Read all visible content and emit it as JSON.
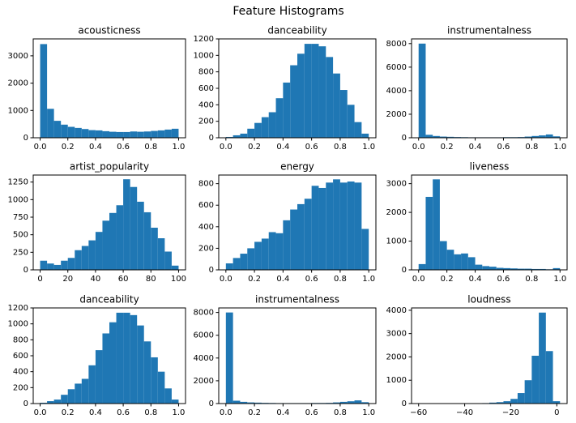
{
  "title": "Feature Histograms",
  "chart_data": [
    {
      "type": "histogram",
      "title": "acousticness",
      "color": "#1f77b4",
      "bins": [
        0,
        0.05,
        0.1,
        0.15,
        0.2,
        0.25,
        0.3,
        0.35,
        0.4,
        0.45,
        0.5,
        0.55,
        0.6,
        0.65,
        0.7,
        0.75,
        0.8,
        0.85,
        0.9,
        0.95,
        1
      ],
      "values": [
        3430,
        1060,
        620,
        480,
        400,
        360,
        320,
        280,
        270,
        240,
        220,
        210,
        210,
        230,
        220,
        230,
        250,
        270,
        300,
        330
      ],
      "xlim": [
        -0.05,
        1.05
      ],
      "xticks": [
        {
          "value": 0,
          "label": "0.0"
        },
        0.2,
        0.4,
        0.6,
        0.8,
        {
          "value": 1,
          "label": "1.0"
        }
      ],
      "ylim": [
        0,
        3620
      ],
      "yticks": [
        0,
        1000,
        2000,
        3000
      ]
    },
    {
      "type": "histogram",
      "title": "danceability",
      "color": "#1f77b4",
      "bins": [
        0,
        0.05,
        0.1,
        0.15,
        0.2,
        0.25,
        0.3,
        0.35,
        0.4,
        0.45,
        0.5,
        0.55,
        0.6,
        0.65,
        0.7,
        0.75,
        0.8,
        0.85,
        0.9,
        0.95,
        1
      ],
      "values": [
        10,
        30,
        50,
        110,
        180,
        250,
        310,
        480,
        670,
        880,
        1020,
        1140,
        1140,
        1110,
        980,
        780,
        580,
        400,
        190,
        50
      ],
      "xlim": [
        -0.05,
        1.05
      ],
      "xticks": [
        {
          "value": 0,
          "label": "0.0"
        },
        0.2,
        0.4,
        0.6,
        0.8,
        {
          "value": 1,
          "label": "1.0"
        }
      ],
      "ylim": [
        0,
        1200
      ],
      "yticks": [
        0,
        200,
        400,
        600,
        800,
        1000,
        1200
      ]
    },
    {
      "type": "histogram",
      "title": "instrumentalness",
      "color": "#1f77b4",
      "bins": [
        0,
        0.05,
        0.1,
        0.15,
        0.2,
        0.25,
        0.3,
        0.35,
        0.4,
        0.45,
        0.5,
        0.55,
        0.6,
        0.65,
        0.7,
        0.75,
        0.8,
        0.85,
        0.9,
        0.95,
        1
      ],
      "values": [
        8000,
        250,
        150,
        100,
        80,
        60,
        50,
        40,
        40,
        40,
        40,
        40,
        50,
        50,
        60,
        100,
        150,
        200,
        280,
        120
      ],
      "xlim": [
        -0.05,
        1.05
      ],
      "xticks": [
        {
          "value": 0,
          "label": "0.0"
        },
        0.2,
        0.4,
        0.6,
        0.8,
        {
          "value": 1,
          "label": "1.0"
        }
      ],
      "ylim": [
        0,
        8400
      ],
      "yticks": [
        0,
        2000,
        4000,
        6000,
        8000
      ]
    },
    {
      "type": "histogram",
      "title": "artist_popularity",
      "color": "#1f77b4",
      "bins": [
        0,
        5,
        10,
        15,
        20,
        25,
        30,
        35,
        40,
        45,
        50,
        55,
        60,
        65,
        70,
        75,
        80,
        85,
        90,
        95,
        100
      ],
      "values": [
        130,
        90,
        70,
        130,
        170,
        280,
        340,
        420,
        540,
        700,
        810,
        920,
        1290,
        1180,
        970,
        820,
        600,
        450,
        260,
        60
      ],
      "xlim": [
        -5,
        105
      ],
      "xticks": [
        0,
        20,
        40,
        60,
        80,
        100
      ],
      "ylim": [
        0,
        1350
      ],
      "yticks": [
        0,
        250,
        500,
        750,
        1000,
        1250
      ]
    },
    {
      "type": "histogram",
      "title": "energy",
      "color": "#1f77b4",
      "bins": [
        0,
        0.05,
        0.1,
        0.15,
        0.2,
        0.25,
        0.3,
        0.35,
        0.4,
        0.45,
        0.5,
        0.55,
        0.6,
        0.65,
        0.7,
        0.75,
        0.8,
        0.85,
        0.9,
        0.95,
        1
      ],
      "values": [
        60,
        110,
        150,
        200,
        260,
        290,
        350,
        340,
        460,
        560,
        610,
        660,
        780,
        760,
        810,
        840,
        810,
        820,
        810,
        380
      ],
      "xlim": [
        -0.05,
        1.05
      ],
      "xticks": [
        {
          "value": 0,
          "label": "0.0"
        },
        0.2,
        0.4,
        0.6,
        0.8,
        {
          "value": 1,
          "label": "1.0"
        }
      ],
      "ylim": [
        0,
        880
      ],
      "yticks": [
        0,
        200,
        400,
        600,
        800
      ]
    },
    {
      "type": "histogram",
      "title": "liveness",
      "color": "#1f77b4",
      "bins": [
        0,
        0.05,
        0.1,
        0.15,
        0.2,
        0.25,
        0.3,
        0.35,
        0.4,
        0.45,
        0.5,
        0.55,
        0.6,
        0.65,
        0.7,
        0.75,
        0.8,
        0.85,
        0.9,
        0.95,
        1
      ],
      "values": [
        200,
        2540,
        3150,
        1000,
        700,
        540,
        570,
        440,
        180,
        130,
        110,
        70,
        60,
        50,
        40,
        40,
        30,
        30,
        20,
        60
      ],
      "xlim": [
        -0.05,
        1.05
      ],
      "xticks": [
        {
          "value": 0,
          "label": "0.0"
        },
        0.2,
        0.4,
        0.6,
        0.8,
        {
          "value": 1,
          "label": "1.0"
        }
      ],
      "ylim": [
        0,
        3300
      ],
      "yticks": [
        0,
        1000,
        2000,
        3000
      ]
    },
    {
      "type": "histogram",
      "title": "danceability",
      "color": "#1f77b4",
      "bins": [
        0,
        0.05,
        0.1,
        0.15,
        0.2,
        0.25,
        0.3,
        0.35,
        0.4,
        0.45,
        0.5,
        0.55,
        0.6,
        0.65,
        0.7,
        0.75,
        0.8,
        0.85,
        0.9,
        0.95,
        1
      ],
      "values": [
        10,
        30,
        50,
        110,
        180,
        250,
        310,
        480,
        670,
        880,
        1020,
        1140,
        1140,
        1110,
        980,
        780,
        580,
        400,
        190,
        50
      ],
      "xlim": [
        -0.05,
        1.05
      ],
      "xticks": [
        {
          "value": 0,
          "label": "0.0"
        },
        0.2,
        0.4,
        0.6,
        0.8,
        {
          "value": 1,
          "label": "1.0"
        }
      ],
      "ylim": [
        0,
        1200
      ],
      "yticks": [
        0,
        200,
        400,
        600,
        800,
        1000,
        1200
      ]
    },
    {
      "type": "histogram",
      "title": "instrumentalness",
      "color": "#1f77b4",
      "bins": [
        0,
        0.05,
        0.1,
        0.15,
        0.2,
        0.25,
        0.3,
        0.35,
        0.4,
        0.45,
        0.5,
        0.55,
        0.6,
        0.65,
        0.7,
        0.75,
        0.8,
        0.85,
        0.9,
        0.95,
        1
      ],
      "values": [
        8000,
        250,
        150,
        100,
        80,
        60,
        50,
        40,
        40,
        40,
        40,
        40,
        50,
        50,
        60,
        100,
        150,
        200,
        280,
        120
      ],
      "xlim": [
        -0.05,
        1.05
      ],
      "xticks": [
        {
          "value": 0,
          "label": "0.0"
        },
        0.2,
        0.4,
        0.6,
        0.8,
        {
          "value": 1,
          "label": "1.0"
        }
      ],
      "ylim": [
        0,
        8400
      ],
      "yticks": [
        0,
        2000,
        4000,
        6000,
        8000
      ]
    },
    {
      "type": "histogram",
      "title": "loudness",
      "color": "#1f77b4",
      "bins": [
        -60,
        -56.93,
        -53.86,
        -50.79,
        -47.72,
        -44.65,
        -41.58,
        -38.51,
        -35.44,
        -32.37,
        -29.3,
        -26.23,
        -23.16,
        -20.09,
        -17.02,
        -13.95,
        -10.88,
        -7.81,
        -4.74,
        -1.67,
        1.4
      ],
      "values": [
        1,
        1,
        1,
        1,
        1,
        2,
        3,
        5,
        10,
        20,
        40,
        60,
        100,
        200,
        450,
        1000,
        2050,
        3900,
        2250,
        100
      ],
      "xlim": [
        -63.07,
        4.47
      ],
      "xticks": [
        {
          "value": -60,
          "label": "−60"
        },
        {
          "value": -40,
          "label": "−40"
        },
        {
          "value": -20,
          "label": "−20"
        },
        0
      ],
      "ylim": [
        0,
        4100
      ],
      "yticks": [
        0,
        1000,
        2000,
        3000,
        4000
      ]
    }
  ]
}
